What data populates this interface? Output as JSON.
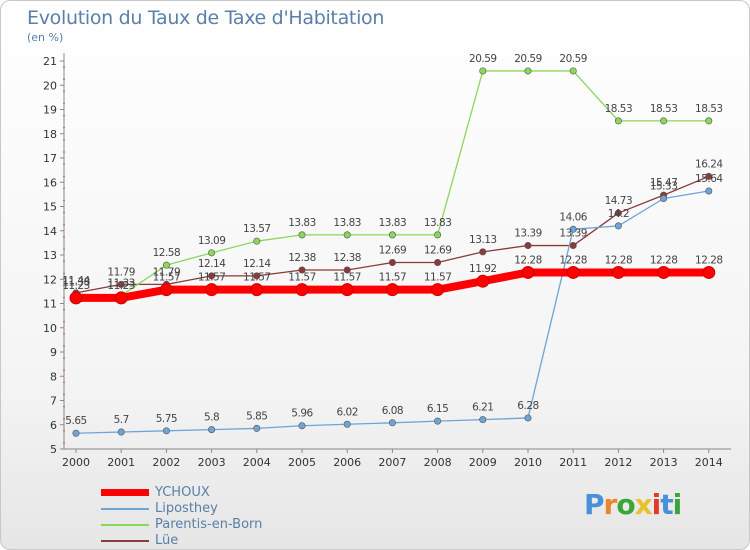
{
  "header": {
    "title": "Evolution du Taux de Taxe d'Habitation",
    "unit": "(en %)"
  },
  "logo": {
    "letters": [
      "P",
      "r",
      "o",
      "x",
      "i",
      "t",
      "i"
    ],
    "colors": [
      "#4a90d9",
      "#e8862a",
      "#3aa63a",
      "#e8c22a",
      "#e23a2a",
      "#4a90d9",
      "#3aa63a"
    ]
  },
  "chart_data": {
    "type": "line",
    "x": [
      "2000",
      "2001",
      "2002",
      "2003",
      "2004",
      "2005",
      "2006",
      "2007",
      "2008",
      "2009",
      "2010",
      "2011",
      "2012",
      "2013",
      "2014"
    ],
    "ylim": [
      5,
      21
    ],
    "yticks": [
      "5",
      "6",
      "7",
      "8",
      "9",
      "10",
      "11",
      "12",
      "13",
      "14",
      "15",
      "16",
      "17",
      "18",
      "19",
      "20",
      "21"
    ],
    "grid": false,
    "legend_position": "bottom-left",
    "series": [
      {
        "name": "YCHOUX",
        "color": "#ff0000",
        "values": [
          11.23,
          11.23,
          11.57,
          11.57,
          11.57,
          11.57,
          11.57,
          11.57,
          11.57,
          11.92,
          12.28,
          12.28,
          12.28,
          12.28,
          12.28
        ],
        "labels": [
          "11.23",
          "11.23",
          "11.57",
          "11.57",
          "11.57",
          "11.57",
          "11.57",
          "11.57",
          "11.57",
          "11.92",
          "12.28",
          "12.28",
          "12.28",
          "12.28",
          "12.28"
        ]
      },
      {
        "name": "Liposthey",
        "color": "#6ea4d6",
        "values": [
          5.65,
          5.7,
          5.75,
          5.8,
          5.85,
          5.96,
          6.02,
          6.08,
          6.15,
          6.21,
          6.28,
          14.06,
          14.2,
          15.33,
          15.64
        ],
        "labels": [
          "5.65",
          "5.7",
          "5.75",
          "5.8",
          "5.85",
          "5.96",
          "6.02",
          "6.08",
          "6.15",
          "6.21",
          "6.28",
          "14.06",
          "14.2",
          "15.33",
          "15.64"
        ]
      },
      {
        "name": "Parentis-en-Born",
        "color": "#8cd65a",
        "values": [
          11.38,
          11.33,
          12.58,
          13.09,
          13.57,
          13.83,
          13.83,
          13.83,
          13.83,
          20.59,
          20.59,
          20.59,
          18.53,
          18.53,
          18.53
        ],
        "labels": [
          "11.38",
          "11.33",
          "12.58",
          "13.09",
          "13.57",
          "13.83",
          "13.83",
          "13.83",
          "13.83",
          "20.59",
          "20.59",
          "20.59",
          "18.53",
          "18.53",
          "18.53"
        ]
      },
      {
        "name": "Lüe",
        "color": "#8b3a3a",
        "values": [
          11.44,
          11.79,
          11.79,
          12.14,
          12.14,
          12.38,
          12.38,
          12.69,
          12.69,
          13.13,
          13.39,
          13.39,
          14.73,
          15.47,
          16.24
        ],
        "labels": [
          "11.44",
          "11.79",
          "11.79",
          "12.14",
          "12.14",
          "12.38",
          "12.38",
          "12.69",
          "12.69",
          "13.13",
          "13.39",
          "13.39",
          "14.73",
          "15.47",
          "16.24"
        ]
      }
    ]
  }
}
